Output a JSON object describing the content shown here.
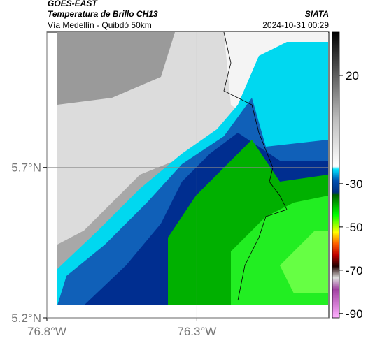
{
  "header": {
    "title": "GOES-EAST",
    "subtitle": "Temperatura de Brillo CH13",
    "source": "SIATA",
    "region": "Vía Medellín - Quibdó 50km",
    "datetime": "2024-10-31 00:29"
  },
  "map": {
    "xlim": [
      -76.8,
      -75.86
    ],
    "ylim": [
      5.2,
      6.15
    ],
    "xticks": [
      {
        "value": -76.8,
        "label": "76.8°W"
      },
      {
        "value": -76.3,
        "label": "76.3°W"
      }
    ],
    "yticks": [
      {
        "value": 5.2,
        "label": "5.2°N"
      },
      {
        "value": 5.7,
        "label": "5.7°N"
      }
    ]
  },
  "colorbar": {
    "lim": [
      -92,
      40
    ],
    "ticks": [
      20,
      -30,
      -50,
      -70,
      -90
    ]
  }
}
